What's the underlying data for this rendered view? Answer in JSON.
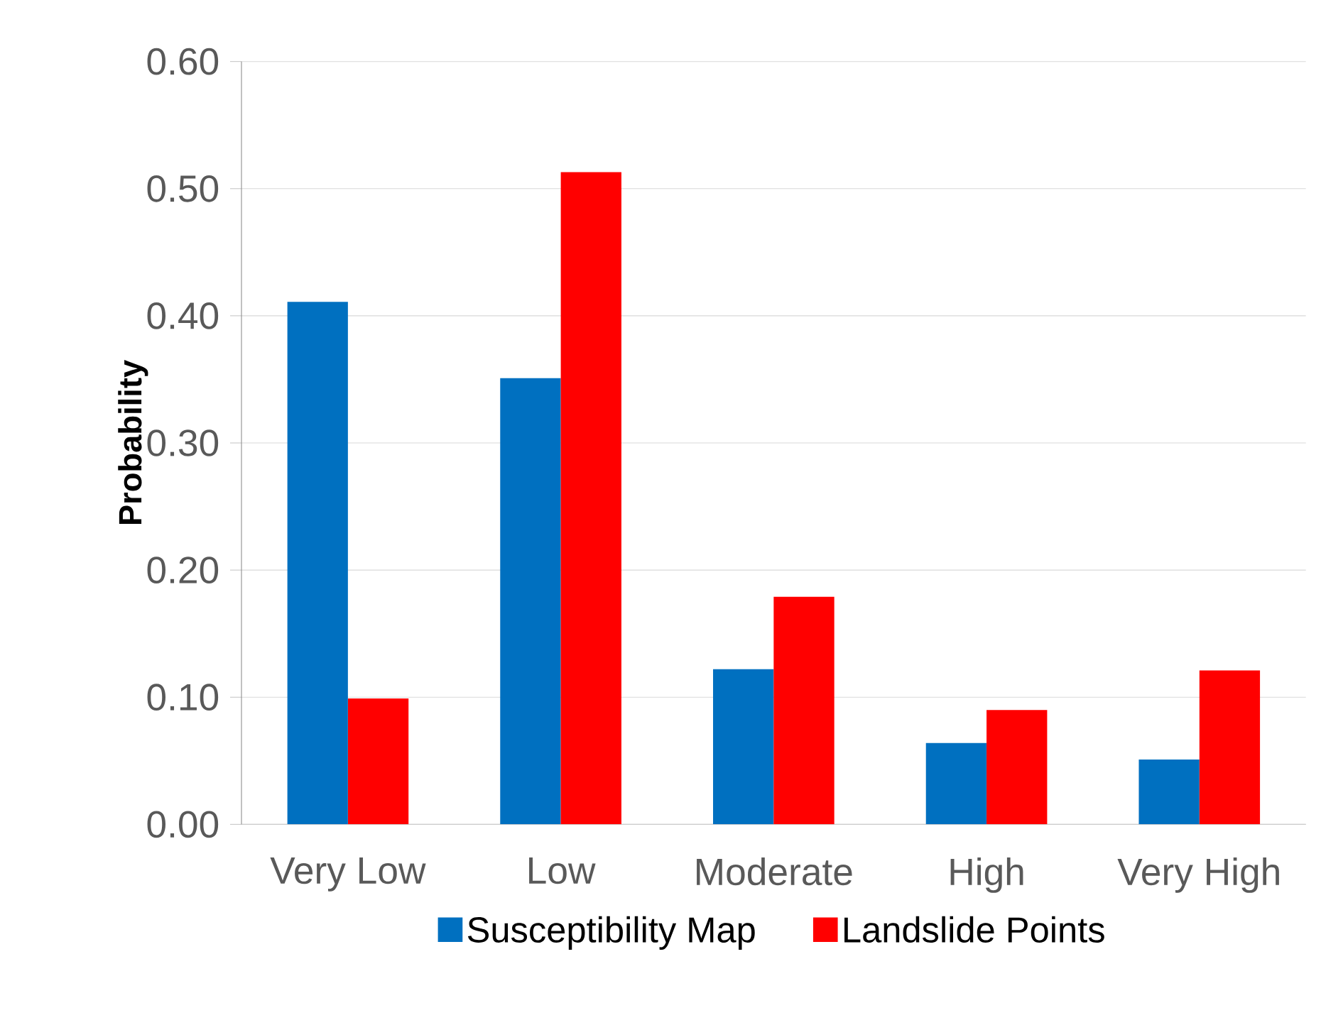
{
  "chart_data": {
    "type": "bar",
    "ylabel": "Probability",
    "categories": [
      "Very Low",
      "Low",
      "Moderate",
      "High",
      "Very High"
    ],
    "series": [
      {
        "name": "Susceptibility Map",
        "color": "#0070c0",
        "values": [
          0.411,
          0.351,
          0.122,
          0.064,
          0.051
        ]
      },
      {
        "name": "Landslide Points",
        "color": "#ff0000",
        "values": [
          0.099,
          0.513,
          0.179,
          0.09,
          0.121
        ]
      }
    ],
    "ylim": [
      0,
      0.6
    ],
    "yticks": [
      {
        "value": 0,
        "label": "0.00"
      },
      {
        "value": 0.1,
        "label": "0.10"
      },
      {
        "value": 0.2,
        "label": "0.20"
      },
      {
        "value": 0.3,
        "label": "0.30"
      },
      {
        "value": 0.4,
        "label": "0.40"
      },
      {
        "value": 0.5,
        "label": "0.50"
      },
      {
        "value": 0.6,
        "label": "0.60"
      }
    ],
    "grid": "y",
    "legend": "bottom"
  }
}
